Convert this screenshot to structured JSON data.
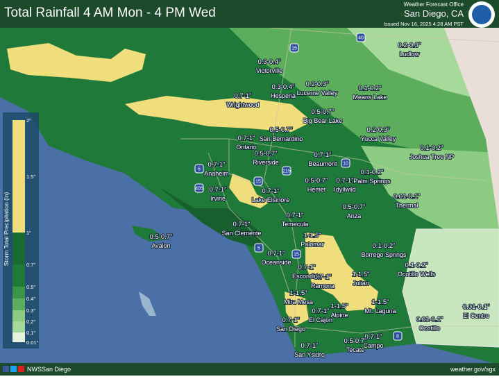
{
  "header": {
    "title": "Total Rainfall 4 AM Mon - 4 PM Wed",
    "office": "Weather Forecast Office",
    "location": "San Diego, CA",
    "issued": "Issued Nov 16, 2025 4:28 AM PST"
  },
  "legend": {
    "title": "Storm Total Precipitation (in)",
    "labels": [
      "2\"",
      "1.5\"",
      "1\"",
      "0.7\"",
      "0.5\"",
      "0.4\"",
      "0.3\"",
      "0.2\"",
      "0.1\"",
      "0.01\""
    ]
  },
  "highways": [
    "15",
    "40",
    "10",
    "5",
    "405",
    "215",
    "15",
    "5",
    "15",
    "8"
  ],
  "places": [
    {
      "amount": "0.3-0.4\"",
      "name": "Victorville"
    },
    {
      "amount": "0.3-0.4\"",
      "name": "Hesperia"
    },
    {
      "amount": "0.2-0.3\"",
      "name": "Lucerne Valley"
    },
    {
      "amount": "0.1-0.2\"",
      "name": "Means Lake"
    },
    {
      "amount": "0.2-0.3\"",
      "name": "Ludlow"
    },
    {
      "amount": "0.7-1\"",
      "name": "Wrightwood"
    },
    {
      "amount": "0.5-0.7\"",
      "name": "Big Bear Lake"
    },
    {
      "amount": "0.5-0.7\"",
      "name": "San Bernardino"
    },
    {
      "amount": "0.2-0.3\"",
      "name": "Yucca Valley"
    },
    {
      "amount": "0.7-1\"",
      "name": "Ontario"
    },
    {
      "amount": "0.5-0.7\"",
      "name": "Riverside"
    },
    {
      "amount": "0.7-1\"",
      "name": "Beaumont"
    },
    {
      "amount": "0.1-0.2\"",
      "name": "Joshua Tree NP"
    },
    {
      "amount": "0.7-1\"",
      "name": "Anaheim"
    },
    {
      "amount": "0.1-0.2\"",
      "name": "Palm Springs"
    },
    {
      "amount": "0.5-0.7\"",
      "name": "Hemet"
    },
    {
      "amount": "0.7-1\"",
      "name": "Idyllwild"
    },
    {
      "amount": "0.7-1\"",
      "name": "Irvine"
    },
    {
      "amount": "0.7-1\"",
      "name": "Lake Elsinore"
    },
    {
      "amount": "0.01-0.1\"",
      "name": "Thermal"
    },
    {
      "amount": "0.7-1\"",
      "name": "Temecula"
    },
    {
      "amount": "0.5-0.7\"",
      "name": "Anza"
    },
    {
      "amount": "0.7-1\"",
      "name": "San Clemente"
    },
    {
      "amount": "0.5-0.7\"",
      "name": "Avalon"
    },
    {
      "amount": "1-1.5\"",
      "name": "Palomar"
    },
    {
      "amount": "0.1-0.2\"",
      "name": "Borrego Springs"
    },
    {
      "amount": "0.7-1\"",
      "name": "Oceanside"
    },
    {
      "amount": "0.7-1\"",
      "name": "Escondido"
    },
    {
      "amount": "1-1.5\"",
      "name": "Julian"
    },
    {
      "amount": "0.1-0.2\"",
      "name": "Ocotillo Wells"
    },
    {
      "amount": "0.7-1\"",
      "name": "Ramona"
    },
    {
      "amount": "1-1.5\"",
      "name": "Mira Mesa"
    },
    {
      "amount": "1-1.5\"",
      "name": "Alpine"
    },
    {
      "amount": "1-1.5\"",
      "name": "Mt. Laguna"
    },
    {
      "amount": "0.7-1\"",
      "name": "El Cajon"
    },
    {
      "amount": "0.7-1\"",
      "name": "San Diego"
    },
    {
      "amount": "0.01-0.1\"",
      "name": "Ocotillo"
    },
    {
      "amount": "0.01-0.1\"",
      "name": "El Centro"
    },
    {
      "amount": "0.7-1\"",
      "name": "Campo"
    },
    {
      "amount": "0.5-0.7\"",
      "name": "Tecate"
    },
    {
      "amount": "0.7-1\"",
      "name": "San Ysidro"
    }
  ],
  "footer": {
    "handle": "NWSSan Diego",
    "url": "weather.gov/sgx"
  }
}
